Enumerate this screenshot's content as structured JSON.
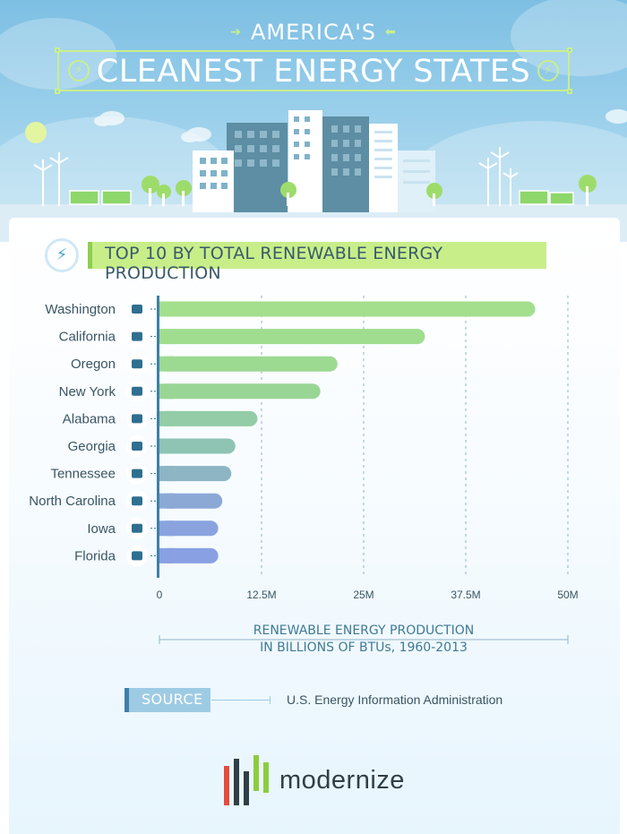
{
  "header": {
    "kicker": "AMERICA'S",
    "title": "CLEANEST ENERGY STATES"
  },
  "section": {
    "title": "TOP 10 BY TOTAL RENEWABLE ENERGY PRODUCTION",
    "icon": "bolt-icon"
  },
  "chart_data": {
    "type": "bar",
    "orientation": "horizontal",
    "title": "TOP 10 BY TOTAL RENEWABLE ENERGY PRODUCTION",
    "categories": [
      "Washington",
      "California",
      "Oregon",
      "New York",
      "Alabama",
      "Georgia",
      "Tennessee",
      "North Carolina",
      "Iowa",
      "Florida"
    ],
    "values": [
      46000000,
      32500000,
      21800000,
      19700000,
      12000000,
      9300000,
      8800000,
      7700000,
      7200000,
      7200000
    ],
    "xlim": [
      0,
      50000000
    ],
    "xticks": [
      0,
      12500000,
      25000000,
      37500000,
      50000000
    ],
    "xtick_labels": [
      "0",
      "12.5M",
      "25M",
      "37.5M",
      "50M"
    ],
    "xlabel": [
      "RENEWABLE ENERGY PRODUCTION",
      "IN BILLIONS OF BTUs, 1960-2013"
    ],
    "grid": "vertical dashed",
    "bar_colors": [
      "#a3df8d",
      "#a0dd8f",
      "#9cda92",
      "#99d695",
      "#93cca6",
      "#8fc3b4",
      "#8db5c4",
      "#8ca9d6",
      "#8aa3df",
      "#89a0e3"
    ],
    "state_icons": [
      "washington-icon",
      "california-icon",
      "oregon-icon",
      "new-york-icon",
      "alabama-icon",
      "georgia-icon",
      "tennessee-icon",
      "north-carolina-icon",
      "iowa-icon",
      "florida-icon"
    ]
  },
  "source": {
    "label": "SOURCE",
    "text": "U.S. Energy Information Administration"
  },
  "brand": {
    "name": "modernize",
    "icon": "modernize-logo-icon"
  },
  "colors": {
    "sky": "#8ccae9",
    "accent_green": "#c8ee8a",
    "axis": "#3f7fa7",
    "building": "#5d8ea3"
  }
}
